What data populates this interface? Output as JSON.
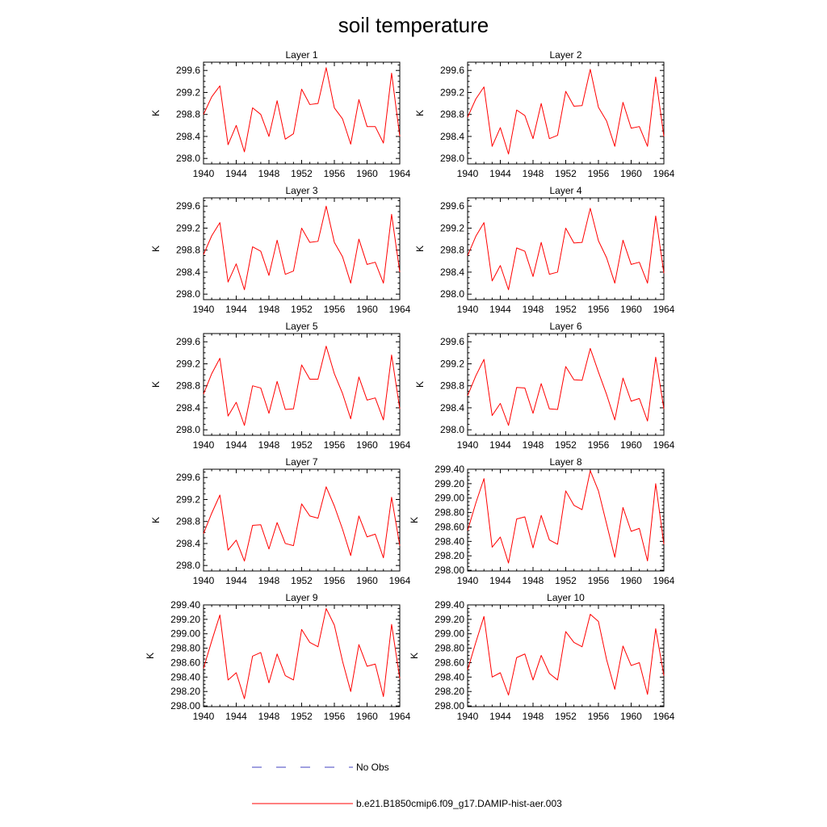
{
  "figure": {
    "title": "soil temperature"
  },
  "legend": {
    "entries": [
      {
        "label": "No Obs",
        "color": "#4040c0",
        "dash": true
      },
      {
        "label": "b.e21.B1850cmip6.f09_g17.DAMIP-hist-aer.003",
        "color": "#ff0000",
        "dash": false
      }
    ]
  },
  "chart_data": [
    {
      "type": "line",
      "title": "Layer 1",
      "ylabel": "K",
      "xlim": [
        1940,
        1964
      ],
      "ylim": [
        297.9,
        299.75
      ],
      "xticks": [
        1940,
        1944,
        1948,
        1952,
        1956,
        1960,
        1964
      ],
      "yticks": [
        "298.0",
        "298.4",
        "298.8",
        "299.2",
        "299.6"
      ],
      "yticks_values": [
        298.0,
        298.4,
        298.8,
        299.2,
        299.6
      ],
      "x": [
        1940,
        1941,
        1942,
        1943,
        1944,
        1945,
        1946,
        1947,
        1948,
        1949,
        1950,
        1951,
        1952,
        1953,
        1954,
        1955,
        1956,
        1957,
        1958,
        1959,
        1960,
        1961,
        1962,
        1963,
        1964
      ],
      "series": [
        {
          "name": "b.e21.B1850cmip6.f09_g17.DAMIP-hist-aer.003",
          "values": [
            298.8,
            299.12,
            299.32,
            298.25,
            298.6,
            298.12,
            298.92,
            298.8,
            298.4,
            299.05,
            298.35,
            298.45,
            299.26,
            298.98,
            299.0,
            299.65,
            298.92,
            298.72,
            298.26,
            299.07,
            298.58,
            298.58,
            298.28,
            299.55,
            298.4
          ]
        }
      ]
    },
    {
      "type": "line",
      "title": "Layer 2",
      "ylabel": "K",
      "xlim": [
        1940,
        1964
      ],
      "ylim": [
        297.9,
        299.75
      ],
      "xticks": [
        1940,
        1944,
        1948,
        1952,
        1956,
        1960,
        1964
      ],
      "yticks": [
        "298.0",
        "298.4",
        "298.8",
        "299.2",
        "299.6"
      ],
      "yticks_values": [
        298.0,
        298.4,
        298.8,
        299.2,
        299.6
      ],
      "x": [
        1940,
        1941,
        1942,
        1943,
        1944,
        1945,
        1946,
        1947,
        1948,
        1949,
        1950,
        1951,
        1952,
        1953,
        1954,
        1955,
        1956,
        1957,
        1958,
        1959,
        1960,
        1961,
        1962,
        1963,
        1964
      ],
      "series": [
        {
          "name": "b.e21.B1850cmip6.f09_g17.DAMIP-hist-aer.003",
          "values": [
            298.75,
            299.08,
            299.3,
            298.22,
            298.56,
            298.08,
            298.88,
            298.78,
            298.36,
            299.0,
            298.36,
            298.42,
            299.22,
            298.95,
            298.96,
            299.62,
            298.93,
            298.68,
            298.22,
            299.02,
            298.55,
            298.58,
            298.22,
            299.48,
            298.4
          ]
        }
      ]
    },
    {
      "type": "line",
      "title": "Layer 3",
      "ylabel": "K",
      "xlim": [
        1940,
        1964
      ],
      "ylim": [
        297.9,
        299.75
      ],
      "xticks": [
        1940,
        1944,
        1948,
        1952,
        1956,
        1960,
        1964
      ],
      "yticks": [
        "298.0",
        "298.4",
        "298.8",
        "299.2",
        "299.6"
      ],
      "yticks_values": [
        298.0,
        298.4,
        298.8,
        299.2,
        299.6
      ],
      "x": [
        1940,
        1941,
        1942,
        1943,
        1944,
        1945,
        1946,
        1947,
        1948,
        1949,
        1950,
        1951,
        1952,
        1953,
        1954,
        1955,
        1956,
        1957,
        1958,
        1959,
        1960,
        1961,
        1962,
        1963,
        1964
      ],
      "series": [
        {
          "name": "b.e21.B1850cmip6.f09_g17.DAMIP-hist-aer.003",
          "values": [
            298.72,
            299.06,
            299.3,
            298.22,
            298.55,
            298.08,
            298.86,
            298.78,
            298.34,
            298.98,
            298.36,
            298.42,
            299.2,
            298.94,
            298.96,
            299.6,
            298.94,
            298.68,
            298.2,
            299.0,
            298.54,
            298.58,
            298.2,
            299.45,
            298.4
          ]
        }
      ]
    },
    {
      "type": "line",
      "title": "Layer 4",
      "ylabel": "K",
      "xlim": [
        1940,
        1964
      ],
      "ylim": [
        297.9,
        299.75
      ],
      "xticks": [
        1940,
        1944,
        1948,
        1952,
        1956,
        1960,
        1964
      ],
      "yticks": [
        "298.0",
        "298.4",
        "298.8",
        "299.2",
        "299.6"
      ],
      "yticks_values": [
        298.0,
        298.4,
        298.8,
        299.2,
        299.6
      ],
      "x": [
        1940,
        1941,
        1942,
        1943,
        1944,
        1945,
        1946,
        1947,
        1948,
        1949,
        1950,
        1951,
        1952,
        1953,
        1954,
        1955,
        1956,
        1957,
        1958,
        1959,
        1960,
        1961,
        1962,
        1963,
        1964
      ],
      "series": [
        {
          "name": "b.e21.B1850cmip6.f09_g17.DAMIP-hist-aer.003",
          "values": [
            298.7,
            299.05,
            299.3,
            298.24,
            298.52,
            298.08,
            298.84,
            298.78,
            298.32,
            298.94,
            298.36,
            298.4,
            299.2,
            298.93,
            298.94,
            299.56,
            298.97,
            298.66,
            298.2,
            298.98,
            298.54,
            298.58,
            298.2,
            299.42,
            298.38
          ]
        }
      ]
    },
    {
      "type": "line",
      "title": "Layer 5",
      "ylabel": "K",
      "xlim": [
        1940,
        1964
      ],
      "ylim": [
        297.9,
        299.75
      ],
      "xticks": [
        1940,
        1944,
        1948,
        1952,
        1956,
        1960,
        1964
      ],
      "yticks": [
        "298.0",
        "298.4",
        "298.8",
        "299.2",
        "299.6"
      ],
      "yticks_values": [
        298.0,
        298.4,
        298.8,
        299.2,
        299.6
      ],
      "x": [
        1940,
        1941,
        1942,
        1943,
        1944,
        1945,
        1946,
        1947,
        1948,
        1949,
        1950,
        1951,
        1952,
        1953,
        1954,
        1955,
        1956,
        1957,
        1958,
        1959,
        1960,
        1961,
        1962,
        1963,
        1964
      ],
      "series": [
        {
          "name": "b.e21.B1850cmip6.f09_g17.DAMIP-hist-aer.003",
          "values": [
            298.65,
            299.02,
            299.3,
            298.25,
            298.5,
            298.08,
            298.8,
            298.76,
            298.3,
            298.88,
            298.37,
            298.38,
            299.18,
            298.92,
            298.92,
            299.52,
            299.02,
            298.66,
            298.2,
            298.96,
            298.54,
            298.58,
            298.18,
            299.36,
            298.38
          ]
        }
      ]
    },
    {
      "type": "line",
      "title": "Layer 6",
      "ylabel": "K",
      "xlim": [
        1940,
        1964
      ],
      "ylim": [
        297.9,
        299.75
      ],
      "xticks": [
        1940,
        1944,
        1948,
        1952,
        1956,
        1960,
        1964
      ],
      "yticks": [
        "298.0",
        "298.4",
        "298.8",
        "299.2",
        "299.6"
      ],
      "yticks_values": [
        298.0,
        298.4,
        298.8,
        299.2,
        299.6
      ],
      "x": [
        1940,
        1941,
        1942,
        1943,
        1944,
        1945,
        1946,
        1947,
        1948,
        1949,
        1950,
        1951,
        1952,
        1953,
        1954,
        1955,
        1956,
        1957,
        1958,
        1959,
        1960,
        1961,
        1962,
        1963,
        1964
      ],
      "series": [
        {
          "name": "b.e21.B1850cmip6.f09_g17.DAMIP-hist-aer.003",
          "values": [
            298.62,
            298.98,
            299.28,
            298.26,
            298.48,
            298.08,
            298.77,
            298.76,
            298.3,
            298.84,
            298.38,
            298.37,
            299.15,
            298.91,
            298.9,
            299.48,
            299.05,
            298.64,
            298.18,
            298.94,
            298.52,
            298.57,
            298.16,
            299.32,
            298.38
          ]
        }
      ]
    },
    {
      "type": "line",
      "title": "Layer 7",
      "ylabel": "K",
      "xlim": [
        1940,
        1964
      ],
      "ylim": [
        297.9,
        299.75
      ],
      "xticks": [
        1940,
        1944,
        1948,
        1952,
        1956,
        1960,
        1964
      ],
      "yticks": [
        "298.0",
        "298.4",
        "298.8",
        "299.2",
        "299.6"
      ],
      "yticks_values": [
        298.0,
        298.4,
        298.8,
        299.2,
        299.6
      ],
      "x": [
        1940,
        1941,
        1942,
        1943,
        1944,
        1945,
        1946,
        1947,
        1948,
        1949,
        1950,
        1951,
        1952,
        1953,
        1954,
        1955,
        1956,
        1957,
        1958,
        1959,
        1960,
        1961,
        1962,
        1963,
        1964
      ],
      "series": [
        {
          "name": "b.e21.B1850cmip6.f09_g17.DAMIP-hist-aer.003",
          "values": [
            298.58,
            298.95,
            299.28,
            298.28,
            298.46,
            298.08,
            298.73,
            298.74,
            298.3,
            298.78,
            298.4,
            298.36,
            299.12,
            298.9,
            298.86,
            299.43,
            299.08,
            298.66,
            298.18,
            298.9,
            298.52,
            298.57,
            298.14,
            299.24,
            298.36
          ]
        }
      ]
    },
    {
      "type": "line",
      "title": "Layer 8",
      "ylabel": "K",
      "xlim": [
        1940,
        1964
      ],
      "ylim": [
        297.99,
        299.4
      ],
      "xticks": [
        1940,
        1944,
        1948,
        1952,
        1956,
        1960,
        1964
      ],
      "yticks": [
        "298.00",
        "298.20",
        "298.40",
        "298.60",
        "298.80",
        "299.00",
        "299.20",
        "299.40"
      ],
      "yticks_values": [
        298.0,
        298.2,
        298.4,
        298.6,
        298.8,
        299.0,
        299.2,
        299.4
      ],
      "x": [
        1940,
        1941,
        1942,
        1943,
        1944,
        1945,
        1946,
        1947,
        1948,
        1949,
        1950,
        1951,
        1952,
        1953,
        1954,
        1955,
        1956,
        1957,
        1958,
        1959,
        1960,
        1961,
        1962,
        1963,
        1964
      ],
      "series": [
        {
          "name": "b.e21.B1850cmip6.f09_g17.DAMIP-hist-aer.003",
          "values": [
            298.55,
            298.93,
            299.27,
            298.32,
            298.46,
            298.1,
            298.71,
            298.74,
            298.31,
            298.76,
            298.42,
            298.36,
            299.1,
            298.9,
            298.84,
            299.38,
            299.1,
            298.64,
            298.18,
            298.87,
            298.54,
            298.58,
            298.13,
            299.2,
            298.36
          ]
        }
      ]
    },
    {
      "type": "line",
      "title": "Layer 9",
      "ylabel": "K",
      "xlim": [
        1940,
        1964
      ],
      "ylim": [
        297.99,
        299.4
      ],
      "xticks": [
        1940,
        1944,
        1948,
        1952,
        1956,
        1960,
        1964
      ],
      "yticks": [
        "298.00",
        "298.20",
        "298.40",
        "298.60",
        "298.80",
        "299.00",
        "299.20",
        "299.40"
      ],
      "yticks_values": [
        298.0,
        298.2,
        298.4,
        298.6,
        298.8,
        299.0,
        299.2,
        299.4
      ],
      "x": [
        1940,
        1941,
        1942,
        1943,
        1944,
        1945,
        1946,
        1947,
        1948,
        1949,
        1950,
        1951,
        1952,
        1953,
        1954,
        1955,
        1956,
        1957,
        1958,
        1959,
        1960,
        1961,
        1962,
        1963,
        1964
      ],
      "series": [
        {
          "name": "b.e21.B1850cmip6.f09_g17.DAMIP-hist-aer.003",
          "values": [
            298.52,
            298.9,
            299.26,
            298.36,
            298.46,
            298.1,
            298.69,
            298.74,
            298.32,
            298.72,
            298.42,
            298.36,
            299.06,
            298.88,
            298.82,
            299.35,
            299.12,
            298.62,
            298.2,
            298.85,
            298.55,
            298.58,
            298.13,
            299.13,
            298.38
          ]
        }
      ]
    },
    {
      "type": "line",
      "title": "Layer 10",
      "ylabel": "K",
      "xlim": [
        1940,
        1964
      ],
      "ylim": [
        297.99,
        299.4
      ],
      "xticks": [
        1940,
        1944,
        1948,
        1952,
        1956,
        1960,
        1964
      ],
      "yticks": [
        "298.00",
        "298.20",
        "298.40",
        "298.60",
        "298.80",
        "299.00",
        "299.20",
        "299.40"
      ],
      "yticks_values": [
        298.0,
        298.2,
        298.4,
        298.6,
        298.8,
        299.0,
        299.2,
        299.4
      ],
      "x": [
        1940,
        1941,
        1942,
        1943,
        1944,
        1945,
        1946,
        1947,
        1948,
        1949,
        1950,
        1951,
        1952,
        1953,
        1954,
        1955,
        1956,
        1957,
        1958,
        1959,
        1960,
        1961,
        1962,
        1963,
        1964
      ],
      "series": [
        {
          "name": "b.e21.B1850cmip6.f09_g17.DAMIP-hist-aer.003",
          "values": [
            298.5,
            298.88,
            299.24,
            298.4,
            298.46,
            298.15,
            298.67,
            298.72,
            298.36,
            298.7,
            298.45,
            298.36,
            299.03,
            298.88,
            298.82,
            299.27,
            299.17,
            298.64,
            298.23,
            298.83,
            298.56,
            298.6,
            298.16,
            299.07,
            298.42
          ]
        }
      ]
    }
  ]
}
